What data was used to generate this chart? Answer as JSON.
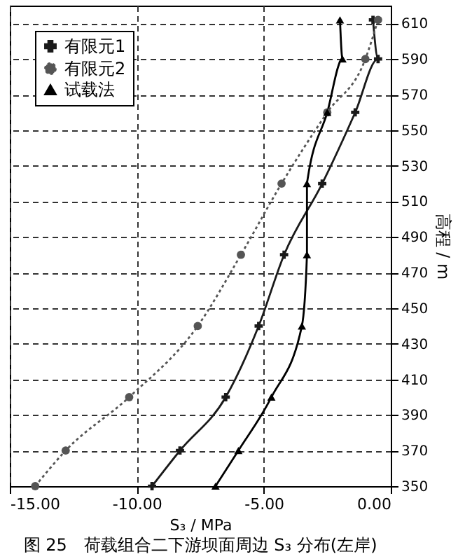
{
  "chart_data": {
    "type": "line",
    "title": "图 25　荷载组合二下游坝面周边 S₃ 分布(左岸)",
    "xlabel": "S₃ / MPa",
    "ylabel": "高程 / m",
    "series": [
      {
        "name": "有限元1",
        "color": "#1a1a1a",
        "marker": "cross",
        "line_style": "solid",
        "x": [
          -9.4,
          -8.3,
          -6.5,
          -5.2,
          -4.2,
          -2.7,
          -1.4,
          -0.5,
          -0.7
        ],
        "values": [
          350,
          370,
          400,
          440,
          480,
          520,
          560,
          590,
          612
        ]
      },
      {
        "name": "有限元2",
        "color": "#555555",
        "marker": "circle",
        "line_style": "dotted",
        "x": [
          -14.0,
          -12.8,
          -10.3,
          -7.6,
          -5.9,
          -4.3,
          -2.5,
          -1.0,
          -0.5
        ],
        "values": [
          350,
          370,
          400,
          440,
          480,
          520,
          560,
          590,
          612
        ]
      },
      {
        "name": "试载法",
        "color": "#000000",
        "marker": "triangle",
        "line_style": "solid",
        "x": [
          -6.9,
          -6.0,
          -4.7,
          -3.5,
          -3.3,
          -3.3,
          -2.5,
          -1.9,
          -2.0
        ],
        "values": [
          350,
          370,
          400,
          440,
          480,
          520,
          560,
          590,
          612
        ]
      }
    ],
    "xlim": [
      -15,
      0
    ],
    "xticks": [
      {
        "value": -15,
        "label": "-15.00"
      },
      {
        "value": -10,
        "label": "-10.00"
      },
      {
        "value": -5,
        "label": "-5.00"
      },
      {
        "value": 0,
        "label": "0.00"
      }
    ],
    "ylim": [
      350,
      620
    ],
    "yticks": [
      350,
      370,
      390,
      410,
      430,
      450,
      470,
      490,
      510,
      530,
      550,
      570,
      590,
      610
    ],
    "grid": true,
    "legend": "top left"
  }
}
